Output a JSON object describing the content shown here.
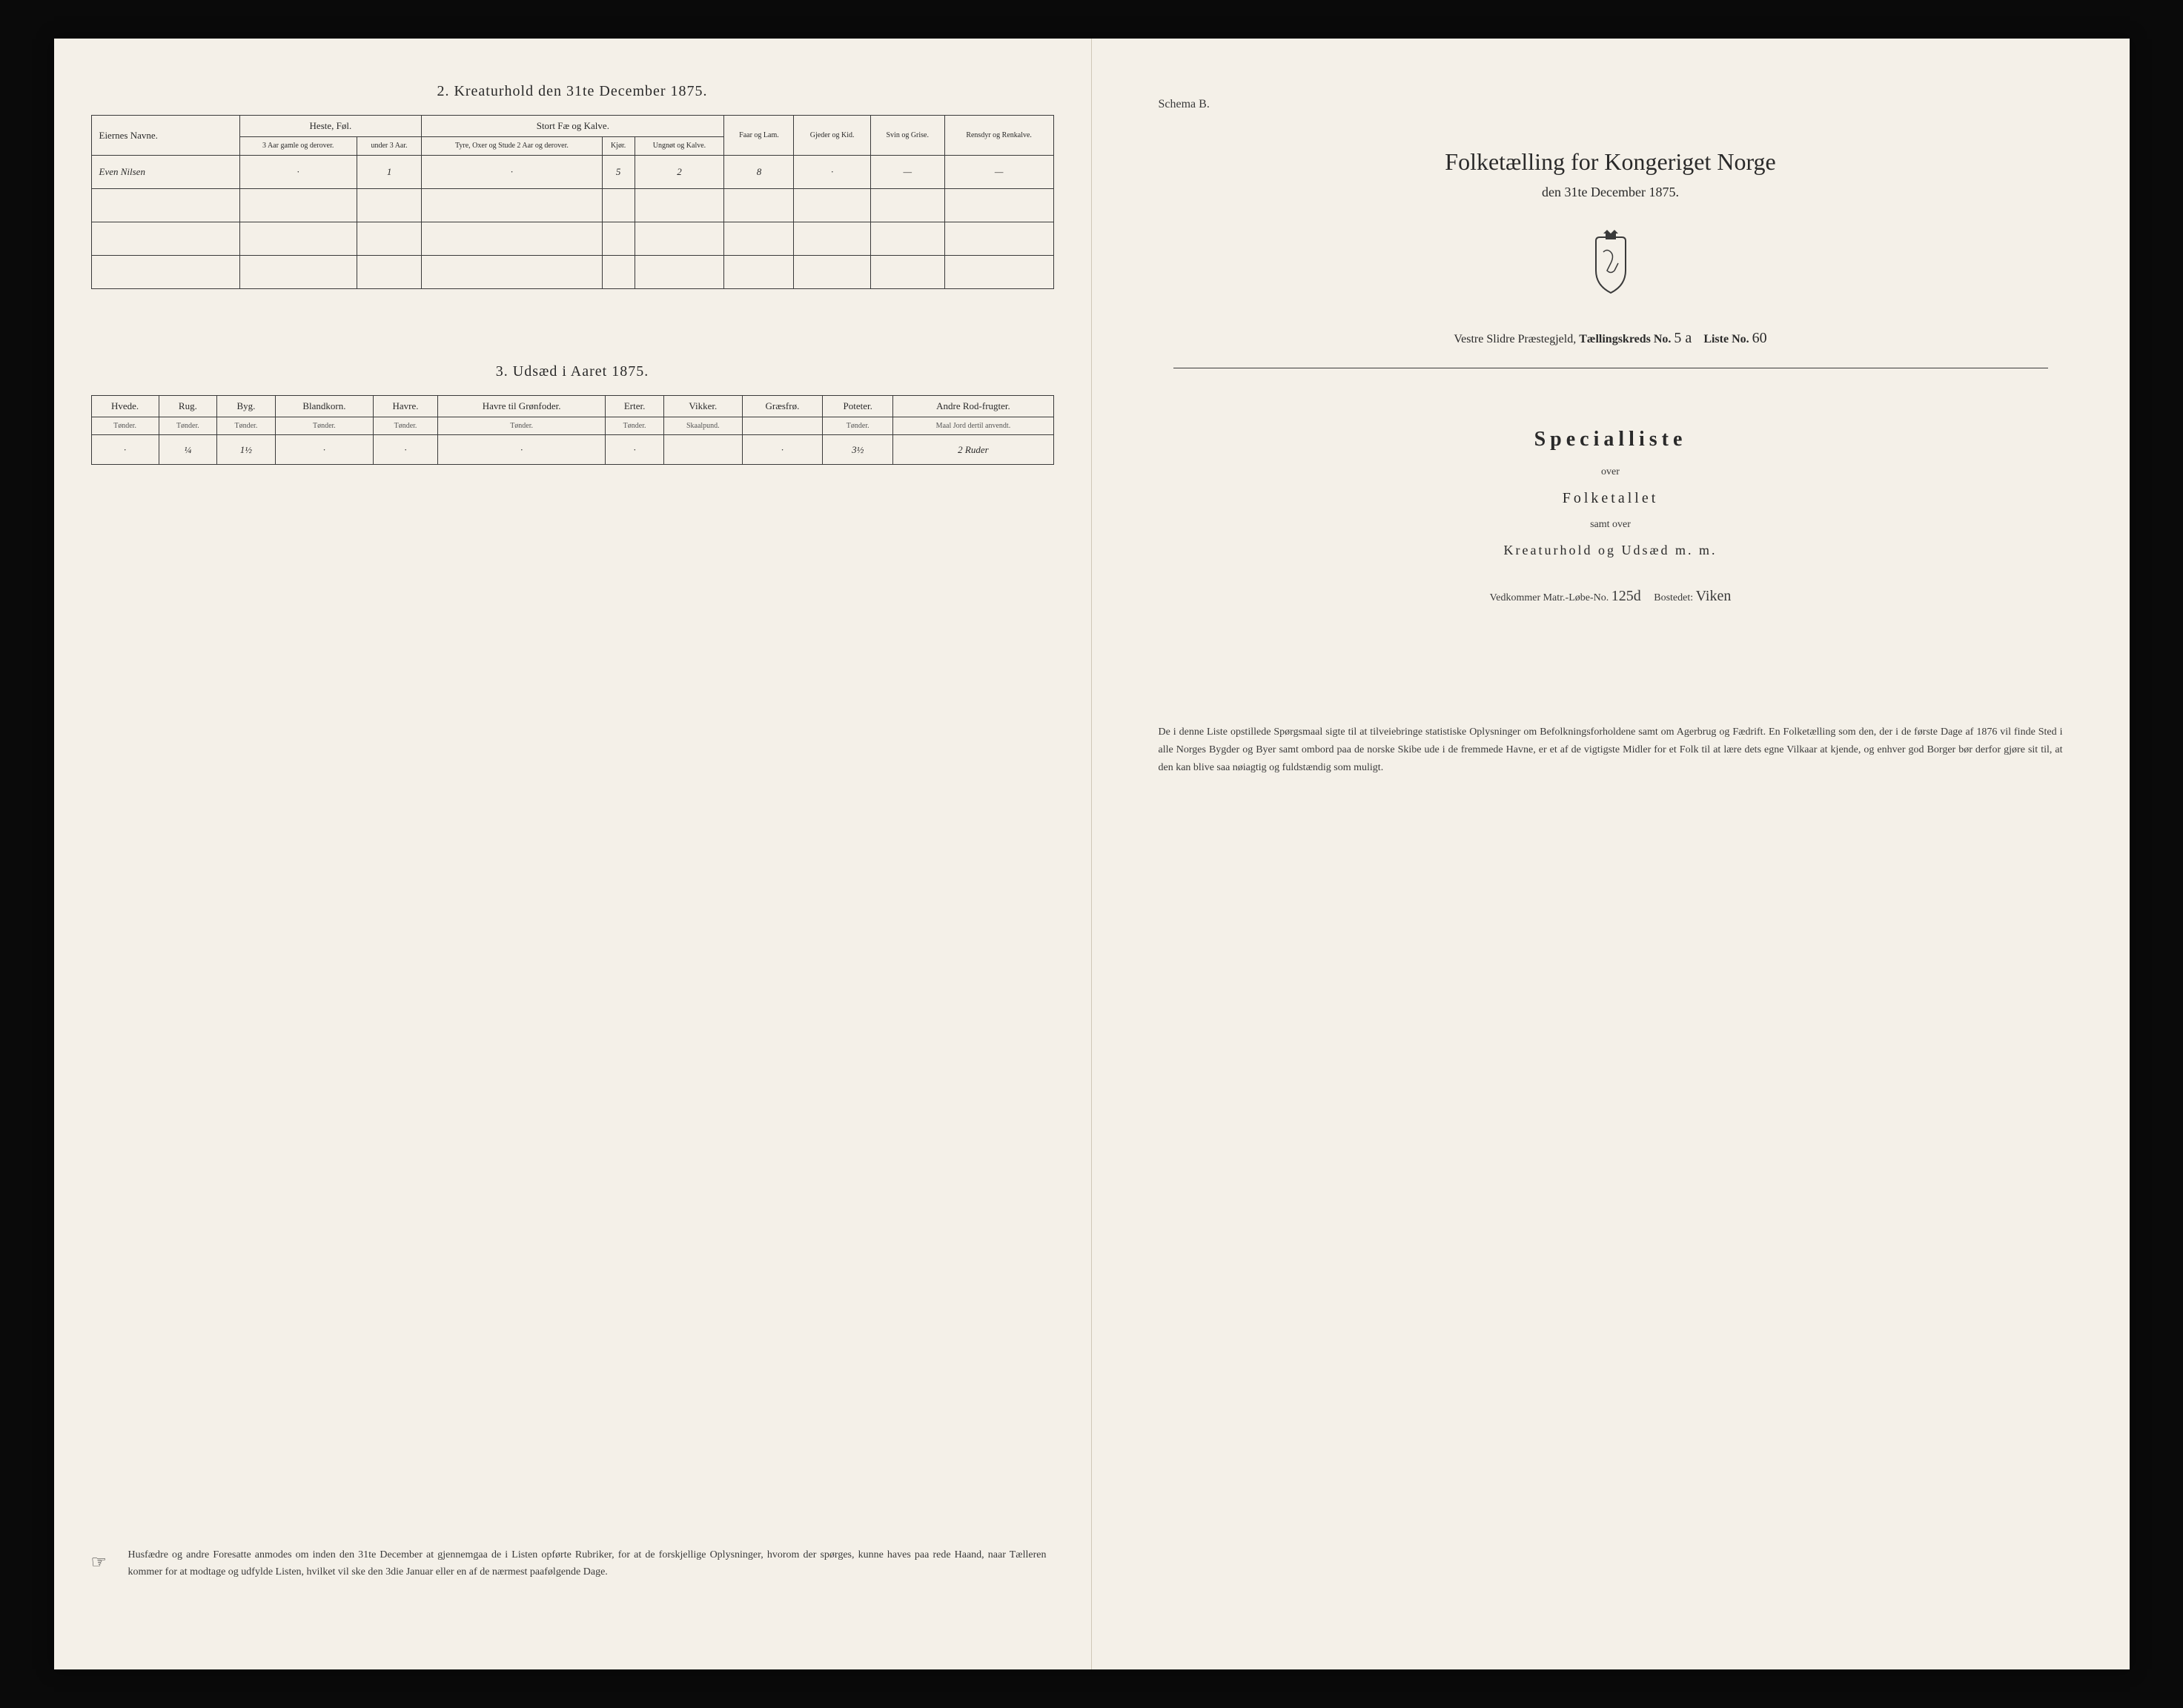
{
  "left": {
    "section2": {
      "title": "2.  Kreaturhold den 31te December 1875.",
      "owner_header": "Eiernes Navne.",
      "group_headers": [
        "Heste, Føl.",
        "Stort Fæ og Kalve."
      ],
      "single_headers": [
        "Faar og Lam.",
        "Gjeder og Kid.",
        "Svin og Grise.",
        "Rensdyr og Renkalve."
      ],
      "sub_headers": [
        "3 Aar gamle og derover.",
        "under 3 Aar.",
        "Tyre, Oxer og Stude 2 Aar og derover.",
        "Kjør.",
        "Ungnøt og Kalve."
      ],
      "rows": [
        {
          "owner": "Even Nilsen",
          "values": [
            "·",
            "1",
            "·",
            "5",
            "2",
            "8",
            "·",
            "—",
            "—"
          ]
        },
        {
          "owner": "",
          "values": [
            "",
            "",
            "",
            "",
            "",
            "",
            "",
            "",
            ""
          ]
        },
        {
          "owner": "",
          "values": [
            "",
            "",
            "",
            "",
            "",
            "",
            "",
            "",
            ""
          ]
        },
        {
          "owner": "",
          "values": [
            "",
            "",
            "",
            "",
            "",
            "",
            "",
            "",
            ""
          ]
        }
      ]
    },
    "section3": {
      "title": "3.  Udsæd i Aaret 1875.",
      "columns": [
        {
          "name": "Hvede.",
          "unit": "Tønder."
        },
        {
          "name": "Rug.",
          "unit": "Tønder."
        },
        {
          "name": "Byg.",
          "unit": "Tønder."
        },
        {
          "name": "Blandkorn.",
          "unit": "Tønder."
        },
        {
          "name": "Havre.",
          "unit": "Tønder."
        },
        {
          "name": "Havre til Grønfoder.",
          "unit": "Tønder."
        },
        {
          "name": "Erter.",
          "unit": "Tønder."
        },
        {
          "name": "Vikker.",
          "unit": "Skaalpund."
        },
        {
          "name": "Græsfrø.",
          "unit": ""
        },
        {
          "name": "Poteter.",
          "unit": "Tønder."
        },
        {
          "name": "Andre Rod-frugter.",
          "unit": "Maal Jord dertil anvendt."
        }
      ],
      "row": [
        "·",
        "¼",
        "1½",
        "·",
        "·",
        "·",
        "·",
        "",
        "·",
        "3½",
        "2 Ruder"
      ]
    },
    "footer": "Husfædre og andre Foresatte anmodes om inden den 31te December at gjennemgaa de i Listen opførte Rubriker, for at de forskjellige Oplysninger, hvorom der spørges, kunne haves paa rede Haand, naar Tælleren kommer for at modtage og udfylde Listen, hvilket vil ske den 3die Januar eller en af de nærmest paafølgende Dage."
  },
  "right": {
    "schema": "Schema B.",
    "main_title": "Folketælling for Kongeriget Norge",
    "subtitle": "den 31te December 1875.",
    "district_prefix": "Vestre Slidre Præstegjeld,",
    "district_label1": "Tællingskreds No.",
    "district_val1": "5 a",
    "district_label2": "Liste No.",
    "district_val2": "60",
    "special": "Specialliste",
    "over": "over",
    "folketallet": "Folketallet",
    "samt": "samt over",
    "kreaturhold": "Kreaturhold og Udsæd m. m.",
    "vedkommer_label1": "Vedkommer Matr.-Løbe-No.",
    "vedkommer_val1": "125d",
    "vedkommer_label2": "Bostedet:",
    "vedkommer_val2": "Viken",
    "footer": "De i denne Liste opstillede Spørgsmaal sigte til at tilveiebringe statistiske Oplysninger om Befolkningsforholdene samt om Agerbrug og Fædrift. En Folketælling som den, der i de første Dage af 1876 vil finde Sted i alle Norges Bygder og Byer samt ombord paa de norske Skibe ude i de fremmede Havne, er et af de vigtigste Midler for et Folk til at lære dets egne Vilkaar at kjende, og enhver god Borger bør derfor gjøre sit til, at den kan blive saa nøiagtig og fuldstændig som muligt."
  },
  "colors": {
    "paper": "#f4f0e8",
    "ink": "#2a2a2a",
    "border": "#3a3a3a",
    "background": "#0a0a0a"
  }
}
